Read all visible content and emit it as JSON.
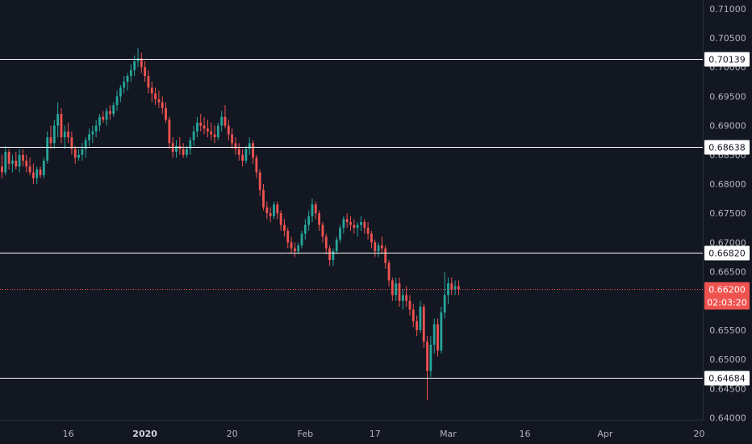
{
  "chart_data": {
    "type": "candlestick",
    "colors": {
      "background": "#131722",
      "up": "#26a69a",
      "down": "#ef5350",
      "axis_text": "#b2b5be",
      "level_line": "#ffffff",
      "current_price": "#ef5350"
    },
    "y_axis": {
      "range": [
        0.6355,
        0.7115
      ],
      "ticks": [
        "0.71000",
        "0.70500",
        "0.70000",
        "0.69500",
        "0.69000",
        "0.68500",
        "0.68000",
        "0.67500",
        "0.67000",
        "0.66500",
        "0.66000",
        "0.65500",
        "0.65000",
        "0.64500",
        "0.64000"
      ]
    },
    "x_axis": {
      "ticks": [
        {
          "label": "16",
          "bar": 19,
          "bold": false
        },
        {
          "label": "2020",
          "bar": 41,
          "bold": true
        },
        {
          "label": "20",
          "bar": 66,
          "bold": false
        },
        {
          "label": "Feb",
          "bar": 87,
          "bold": false
        },
        {
          "label": "17",
          "bar": 107,
          "bold": false
        },
        {
          "label": "Mar",
          "bar": 128,
          "bold": false
        },
        {
          "label": "16",
          "bar": 150,
          "bold": false
        },
        {
          "label": "Apr",
          "bar": 173,
          "bold": false
        },
        {
          "label": "20",
          "bar": 200,
          "bold": false
        }
      ]
    },
    "horizontal_levels": [
      {
        "value": 0.70139,
        "label": "0.70139"
      },
      {
        "value": 0.68638,
        "label": "0.68638"
      },
      {
        "value": 0.6682,
        "label": "0.66820"
      },
      {
        "value": 0.64684,
        "label": "0.64684"
      }
    ],
    "current_price": {
      "value": 0.662,
      "label": "0.66200",
      "countdown": "02:03:20"
    },
    "candles": [
      [
        0.683,
        0.685,
        0.681,
        0.682
      ],
      [
        0.682,
        0.6865,
        0.6815,
        0.6855
      ],
      [
        0.6855,
        0.686,
        0.6825,
        0.6835
      ],
      [
        0.6835,
        0.685,
        0.682,
        0.684
      ],
      [
        0.684,
        0.6855,
        0.6825,
        0.683
      ],
      [
        0.683,
        0.686,
        0.682,
        0.685
      ],
      [
        0.685,
        0.686,
        0.683,
        0.684
      ],
      [
        0.684,
        0.685,
        0.682,
        0.683
      ],
      [
        0.683,
        0.6845,
        0.6815,
        0.682
      ],
      [
        0.682,
        0.6835,
        0.68,
        0.681
      ],
      [
        0.681,
        0.683,
        0.68,
        0.6825
      ],
      [
        0.6825,
        0.683,
        0.681,
        0.6815
      ],
      [
        0.6815,
        0.6845,
        0.681,
        0.684
      ],
      [
        0.684,
        0.689,
        0.6835,
        0.688
      ],
      [
        0.688,
        0.69,
        0.686,
        0.687
      ],
      [
        0.687,
        0.691,
        0.686,
        0.69
      ],
      [
        0.69,
        0.694,
        0.688,
        0.692
      ],
      [
        0.692,
        0.693,
        0.687,
        0.688
      ],
      [
        0.688,
        0.69,
        0.686,
        0.689
      ],
      [
        0.689,
        0.6905,
        0.687,
        0.688
      ],
      [
        0.688,
        0.689,
        0.685,
        0.686
      ],
      [
        0.686,
        0.6865,
        0.6835,
        0.6845
      ],
      [
        0.6845,
        0.686,
        0.684,
        0.685
      ],
      [
        0.685,
        0.687,
        0.684,
        0.686
      ],
      [
        0.686,
        0.688,
        0.6845,
        0.6875
      ],
      [
        0.6875,
        0.6895,
        0.6865,
        0.6885
      ],
      [
        0.6885,
        0.69,
        0.687,
        0.689
      ],
      [
        0.689,
        0.691,
        0.688,
        0.69
      ],
      [
        0.69,
        0.692,
        0.689,
        0.6915
      ],
      [
        0.6915,
        0.6925,
        0.6905,
        0.691
      ],
      [
        0.691,
        0.693,
        0.69,
        0.6925
      ],
      [
        0.6925,
        0.6935,
        0.691,
        0.692
      ],
      [
        0.692,
        0.694,
        0.6915,
        0.6935
      ],
      [
        0.6935,
        0.696,
        0.6925,
        0.695
      ],
      [
        0.695,
        0.697,
        0.694,
        0.6965
      ],
      [
        0.6965,
        0.6985,
        0.6955,
        0.6975
      ],
      [
        0.6975,
        0.699,
        0.696,
        0.6985
      ],
      [
        0.6985,
        0.7005,
        0.6975,
        0.6995
      ],
      [
        0.6995,
        0.702,
        0.6985,
        0.701
      ],
      [
        0.701,
        0.7033,
        0.7,
        0.7015
      ],
      [
        0.7015,
        0.7025,
        0.699,
        0.7
      ],
      [
        0.7,
        0.701,
        0.6975,
        0.6985
      ],
      [
        0.6985,
        0.6995,
        0.6955,
        0.6965
      ],
      [
        0.6965,
        0.6975,
        0.694,
        0.6955
      ],
      [
        0.6955,
        0.6965,
        0.6935,
        0.6945
      ],
      [
        0.6945,
        0.696,
        0.693,
        0.694
      ],
      [
        0.694,
        0.695,
        0.692,
        0.693
      ],
      [
        0.693,
        0.694,
        0.6905,
        0.691
      ],
      [
        0.691,
        0.6915,
        0.686,
        0.687
      ],
      [
        0.687,
        0.688,
        0.6845,
        0.6855
      ],
      [
        0.6855,
        0.6875,
        0.6845,
        0.6865
      ],
      [
        0.6865,
        0.688,
        0.685,
        0.686
      ],
      [
        0.686,
        0.687,
        0.6845,
        0.685
      ],
      [
        0.685,
        0.6865,
        0.6845,
        0.686
      ],
      [
        0.686,
        0.688,
        0.685,
        0.6875
      ],
      [
        0.6875,
        0.69,
        0.6865,
        0.689
      ],
      [
        0.689,
        0.6915,
        0.688,
        0.6905
      ],
      [
        0.6905,
        0.692,
        0.689,
        0.69
      ],
      [
        0.69,
        0.6915,
        0.6885,
        0.6895
      ],
      [
        0.6895,
        0.691,
        0.688,
        0.689
      ],
      [
        0.689,
        0.6905,
        0.6875,
        0.6885
      ],
      [
        0.6885,
        0.69,
        0.687,
        0.688
      ],
      [
        0.688,
        0.6905,
        0.6875,
        0.69
      ],
      [
        0.69,
        0.6925,
        0.689,
        0.6915
      ],
      [
        0.6915,
        0.6935,
        0.6895,
        0.69
      ],
      [
        0.69,
        0.691,
        0.6875,
        0.6885
      ],
      [
        0.6885,
        0.6895,
        0.686,
        0.687
      ],
      [
        0.687,
        0.688,
        0.685,
        0.686
      ],
      [
        0.686,
        0.687,
        0.684,
        0.685
      ],
      [
        0.685,
        0.686,
        0.683,
        0.684
      ],
      [
        0.684,
        0.6865,
        0.6835,
        0.686
      ],
      [
        0.686,
        0.688,
        0.685,
        0.687
      ],
      [
        0.687,
        0.6875,
        0.6835,
        0.6845
      ],
      [
        0.6845,
        0.685,
        0.681,
        0.682
      ],
      [
        0.682,
        0.6825,
        0.678,
        0.679
      ],
      [
        0.679,
        0.68,
        0.6755,
        0.676
      ],
      [
        0.676,
        0.677,
        0.674,
        0.675
      ],
      [
        0.675,
        0.676,
        0.6735,
        0.6745
      ],
      [
        0.6745,
        0.677,
        0.674,
        0.6765
      ],
      [
        0.6765,
        0.677,
        0.674,
        0.675
      ],
      [
        0.675,
        0.6755,
        0.672,
        0.673
      ],
      [
        0.673,
        0.674,
        0.671,
        0.672
      ],
      [
        0.672,
        0.6725,
        0.669,
        0.67
      ],
      [
        0.67,
        0.671,
        0.668,
        0.669
      ],
      [
        0.669,
        0.67,
        0.6675,
        0.6685
      ],
      [
        0.6685,
        0.67,
        0.668,
        0.6695
      ],
      [
        0.6695,
        0.672,
        0.669,
        0.6715
      ],
      [
        0.6715,
        0.674,
        0.6705,
        0.673
      ],
      [
        0.673,
        0.6755,
        0.672,
        0.6745
      ],
      [
        0.6745,
        0.6775,
        0.6735,
        0.6765
      ],
      [
        0.6765,
        0.677,
        0.674,
        0.675
      ],
      [
        0.675,
        0.6755,
        0.672,
        0.673
      ],
      [
        0.673,
        0.6735,
        0.67,
        0.671
      ],
      [
        0.671,
        0.6715,
        0.668,
        0.669
      ],
      [
        0.669,
        0.6695,
        0.666,
        0.667
      ],
      [
        0.667,
        0.669,
        0.666,
        0.6685
      ],
      [
        0.6685,
        0.671,
        0.668,
        0.6705
      ],
      [
        0.6705,
        0.673,
        0.67,
        0.6725
      ],
      [
        0.6725,
        0.6745,
        0.6715,
        0.674
      ],
      [
        0.674,
        0.675,
        0.6725,
        0.6735
      ],
      [
        0.6735,
        0.6745,
        0.672,
        0.673
      ],
      [
        0.673,
        0.674,
        0.6715,
        0.6725
      ],
      [
        0.6725,
        0.6735,
        0.671,
        0.673
      ],
      [
        0.673,
        0.6745,
        0.672,
        0.6735
      ],
      [
        0.6735,
        0.674,
        0.6715,
        0.6725
      ],
      [
        0.6725,
        0.6735,
        0.6705,
        0.6715
      ],
      [
        0.6715,
        0.672,
        0.669,
        0.67
      ],
      [
        0.67,
        0.6705,
        0.6675,
        0.6685
      ],
      [
        0.6685,
        0.67,
        0.6675,
        0.6695
      ],
      [
        0.6695,
        0.671,
        0.668,
        0.669
      ],
      [
        0.669,
        0.6695,
        0.6655,
        0.6665
      ],
      [
        0.6665,
        0.667,
        0.6625,
        0.6635
      ],
      [
        0.6635,
        0.664,
        0.66,
        0.661
      ],
      [
        0.661,
        0.664,
        0.66,
        0.663
      ],
      [
        0.663,
        0.664,
        0.659,
        0.66
      ],
      [
        0.66,
        0.662,
        0.6585,
        0.661
      ],
      [
        0.661,
        0.6625,
        0.659,
        0.66
      ],
      [
        0.66,
        0.661,
        0.6575,
        0.6585
      ],
      [
        0.6585,
        0.6595,
        0.6555,
        0.6565
      ],
      [
        0.6565,
        0.6575,
        0.654,
        0.655
      ],
      [
        0.655,
        0.66,
        0.6545,
        0.659
      ],
      [
        0.659,
        0.6595,
        0.652,
        0.653
      ],
      [
        0.653,
        0.654,
        0.643,
        0.648
      ],
      [
        0.648,
        0.654,
        0.647,
        0.6525
      ],
      [
        0.6525,
        0.657,
        0.651,
        0.656
      ],
      [
        0.656,
        0.657,
        0.6505,
        0.6515
      ],
      [
        0.6515,
        0.659,
        0.651,
        0.658
      ],
      [
        0.658,
        0.665,
        0.657,
        0.661
      ],
      [
        0.661,
        0.664,
        0.6595,
        0.663
      ],
      [
        0.663,
        0.664,
        0.661,
        0.662
      ],
      [
        0.662,
        0.6635,
        0.661,
        0.6625
      ],
      [
        0.6625,
        0.6635,
        0.661,
        0.662
      ]
    ],
    "title": "",
    "xlabel": "",
    "ylabel": "",
    "grid": false
  }
}
